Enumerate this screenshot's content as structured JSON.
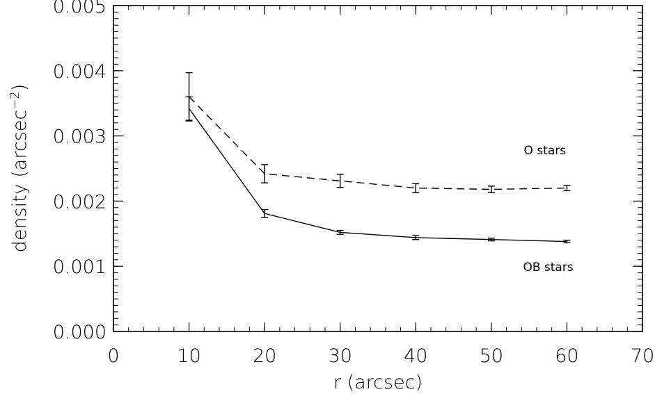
{
  "chart_data": {
    "type": "line",
    "title": "",
    "xlabel": "r (arcsec)",
    "ylabel_main": "density (arcsec",
    "ylabel_exp": "−2",
    "ylabel_close": ")",
    "xlim": [
      0,
      70
    ],
    "ylim": [
      0,
      0.005
    ],
    "x_ticks": [
      0,
      10,
      20,
      30,
      40,
      50,
      60,
      70
    ],
    "x_tick_labels": [
      "0",
      "10",
      "20",
      "30",
      "40",
      "50",
      "60",
      "70"
    ],
    "y_ticks": [
      0,
      0.001,
      0.002,
      0.003,
      0.004,
      0.005
    ],
    "y_tick_labels": [
      "0.000",
      "0.001",
      "0.002",
      "0.003",
      "0.004",
      "0.005"
    ],
    "x_minor_step": 2,
    "y_minor_step": 0.0001,
    "grid": false,
    "series": [
      {
        "name": "O stars",
        "style": "dashed",
        "x": [
          10,
          20,
          30,
          40,
          50,
          60
        ],
        "y": [
          0.0036,
          0.00242,
          0.00231,
          0.0022,
          0.00218,
          0.0022
        ],
        "err": [
          0.00037,
          0.00014,
          0.0001,
          7e-05,
          5e-05,
          4e-05
        ]
      },
      {
        "name": "OB stars",
        "style": "solid",
        "x": [
          10,
          20,
          30,
          40,
          50,
          60
        ],
        "y": [
          0.00342,
          0.00181,
          0.00152,
          0.00144,
          0.00141,
          0.00138
        ],
        "err": [
          0.00018,
          6e-05,
          3e-05,
          3e-05,
          2e-05,
          2e-05
        ]
      }
    ],
    "annotations": [
      {
        "text": "O stars",
        "x": 54.3,
        "y": 0.00272
      },
      {
        "text": "OB stars",
        "x": 54.2,
        "y": 0.00093
      }
    ]
  }
}
